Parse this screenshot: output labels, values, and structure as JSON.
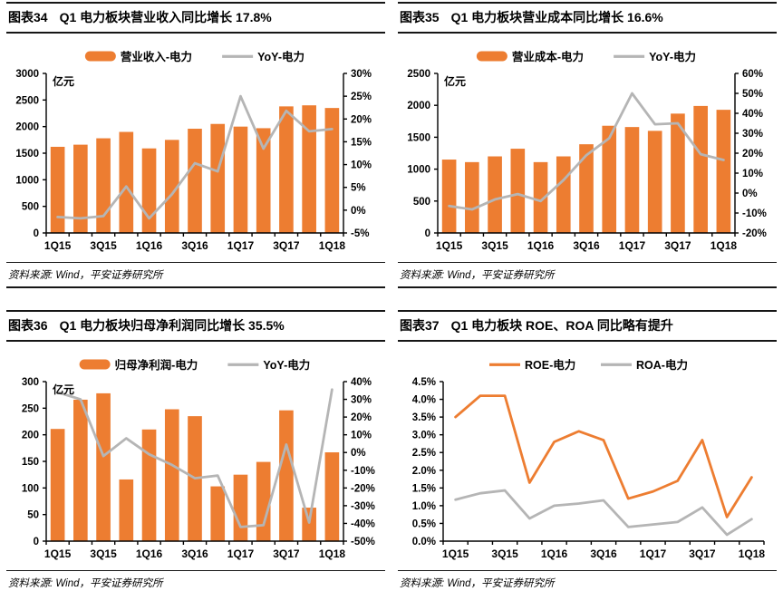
{
  "page": {
    "background": "#ffffff"
  },
  "colors": {
    "bar_orange": "#ED7D31",
    "line_orange": "#ED7D31",
    "line_gray": "#B5B5B5",
    "axis_black": "#000000"
  },
  "panels": [
    {
      "label": "图表34",
      "title": "Q1 电力板块营业收入同比增长 17.8%",
      "source": "资料来源: Wind，平安证券研究所"
    },
    {
      "label": "图表35",
      "title": "Q1 电力板块营业成本同比增长 16.6%",
      "source": "资料来源: Wind，平安证券研究所"
    },
    {
      "label": "图表36",
      "title": "Q1 电力板块归母净利润同比增长 35.5%",
      "source": "资料来源: Wind，平安证券研究所"
    },
    {
      "label": "图表37",
      "title": "Q1 电力板块 ROE、ROA 同比略有提升",
      "source": "资料来源: Wind，平安证券研究所"
    }
  ],
  "chart_data": [
    {
      "type": "bar",
      "title": "Q1 电力板块营业收入同比增长 17.8%",
      "unit": "亿元",
      "categories": [
        "1Q15",
        "2Q15",
        "3Q15",
        "4Q15",
        "1Q16",
        "2Q16",
        "3Q16",
        "4Q16",
        "1Q17",
        "2Q17",
        "3Q17",
        "4Q17",
        "1Q18"
      ],
      "x_label_indices": [
        0,
        2,
        4,
        6,
        8,
        10,
        12
      ],
      "left_axis": {
        "min": 0,
        "max": 3000,
        "step": 500,
        "percent": false,
        "decimals": 0
      },
      "right_axis": {
        "min": -5,
        "max": 30,
        "step": 5,
        "percent": true,
        "decimals": 0
      },
      "legend_position": "top",
      "grid": false,
      "series": [
        {
          "name": "营业收入-电力",
          "kind": "bar",
          "axis": "left",
          "color": "bar_orange",
          "values": [
            1620,
            1660,
            1780,
            1900,
            1590,
            1750,
            1960,
            2050,
            2000,
            1970,
            2380,
            2400,
            2350
          ]
        },
        {
          "name": "YoY-电力",
          "kind": "line",
          "axis": "right",
          "color": "line_gray",
          "values": [
            -1.5,
            -1.8,
            -1.3,
            5.2,
            -1.8,
            3.5,
            10.3,
            8.5,
            25.0,
            13.5,
            21.8,
            17.3,
            17.8
          ]
        }
      ]
    },
    {
      "type": "bar",
      "title": "Q1 电力板块营业成本同比增长 16.6%",
      "unit": "亿元",
      "categories": [
        "1Q15",
        "2Q15",
        "3Q15",
        "4Q15",
        "1Q16",
        "2Q16",
        "3Q16",
        "4Q16",
        "1Q17",
        "2Q17",
        "3Q17",
        "4Q17",
        "1Q18"
      ],
      "x_label_indices": [
        0,
        2,
        4,
        6,
        8,
        10,
        12
      ],
      "left_axis": {
        "min": 0,
        "max": 2500,
        "step": 500,
        "percent": false,
        "decimals": 0
      },
      "right_axis": {
        "min": -20,
        "max": 60,
        "step": 10,
        "percent": true,
        "decimals": 0
      },
      "legend_position": "top",
      "grid": false,
      "series": [
        {
          "name": "营业成本-电力",
          "kind": "bar",
          "axis": "left",
          "color": "bar_orange",
          "values": [
            1150,
            1110,
            1200,
            1320,
            1110,
            1200,
            1390,
            1680,
            1660,
            1600,
            1870,
            1990,
            1930
          ]
        },
        {
          "name": "YoY-电力",
          "kind": "line",
          "axis": "right",
          "color": "line_gray",
          "values": [
            -6.5,
            -8.2,
            -3.2,
            -0.5,
            -4.0,
            6.5,
            19.0,
            27.5,
            50.0,
            34.5,
            35.0,
            19.5,
            16.6
          ]
        }
      ]
    },
    {
      "type": "bar",
      "title": "Q1 电力板块归母净利润同比增长 35.5%",
      "unit": "亿元",
      "categories": [
        "1Q15",
        "2Q15",
        "3Q15",
        "4Q15",
        "1Q16",
        "2Q16",
        "3Q16",
        "4Q16",
        "1Q17",
        "2Q17",
        "3Q17",
        "4Q17",
        "1Q18"
      ],
      "x_label_indices": [
        0,
        2,
        4,
        6,
        8,
        10,
        12
      ],
      "left_axis": {
        "min": 0,
        "max": 300,
        "step": 50,
        "percent": false,
        "decimals": 0
      },
      "right_axis": {
        "min": -50,
        "max": 40,
        "step": 10,
        "percent": true,
        "decimals": 0
      },
      "legend_position": "top",
      "grid": false,
      "series": [
        {
          "name": "归母净利润-电力",
          "kind": "bar",
          "axis": "left",
          "color": "bar_orange",
          "values": [
            211,
            266,
            278,
            116,
            210,
            248,
            235,
            103,
            125,
            149,
            246,
            63,
            167
          ]
        },
        {
          "name": "YoY-电力",
          "kind": "line",
          "axis": "right",
          "color": "line_gray",
          "values": [
            34,
            30,
            -2,
            8,
            -1,
            -7,
            -14.5,
            -13,
            -42,
            -41,
            4.5,
            -39.5,
            35.5
          ]
        }
      ]
    },
    {
      "type": "line",
      "title": "Q1 电力板块 ROE、ROA 同比略有提升",
      "categories": [
        "1Q15",
        "2Q15",
        "3Q15",
        "4Q15",
        "1Q16",
        "2Q16",
        "3Q16",
        "4Q16",
        "1Q17",
        "2Q17",
        "3Q17",
        "4Q17",
        "1Q18"
      ],
      "x_label_indices": [
        0,
        2,
        4,
        6,
        8,
        10,
        12
      ],
      "left_axis": {
        "min": 0,
        "max": 4.5,
        "step": 0.5,
        "percent": true,
        "decimals": 1
      },
      "legend_position": "top",
      "grid": false,
      "series": [
        {
          "name": "ROE-电力",
          "kind": "line",
          "axis": "left",
          "color": "line_orange",
          "values": [
            3.5,
            4.1,
            4.1,
            1.65,
            2.8,
            3.1,
            2.85,
            1.2,
            1.4,
            1.7,
            2.85,
            0.68,
            1.8
          ]
        },
        {
          "name": "ROA-电力",
          "kind": "line",
          "axis": "left",
          "color": "line_gray",
          "values": [
            1.17,
            1.35,
            1.43,
            0.64,
            1.0,
            1.06,
            1.15,
            0.4,
            0.47,
            0.54,
            0.95,
            0.18,
            0.62
          ]
        }
      ]
    }
  ]
}
